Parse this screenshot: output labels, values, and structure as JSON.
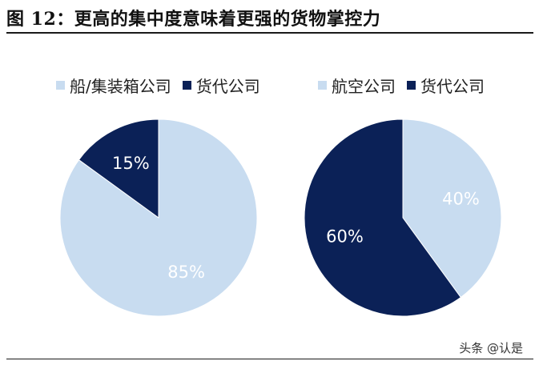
{
  "figure_title": "图 12：更高的集中度意味着更强的货物掌控力",
  "watermark": "头条 @认是",
  "colors": {
    "light": "#c8dcf0",
    "dark": "#0b2157"
  },
  "chart_data": [
    {
      "type": "pie",
      "legend": [
        "船/集装箱公司",
        "货代公司"
      ],
      "slices": [
        {
          "name": "船/集装箱公司",
          "value": 85,
          "label": "85%",
          "color": "#c8dcf0"
        },
        {
          "name": "货代公司",
          "value": 15,
          "label": "15%",
          "color": "#0b2157"
        }
      ]
    },
    {
      "type": "pie",
      "legend": [
        "航空公司",
        "货代公司"
      ],
      "slices": [
        {
          "name": "航空公司",
          "value": 40,
          "label": "40%",
          "color": "#c8dcf0"
        },
        {
          "name": "货代公司",
          "value": 60,
          "label": "60%",
          "color": "#0b2157"
        }
      ]
    }
  ]
}
